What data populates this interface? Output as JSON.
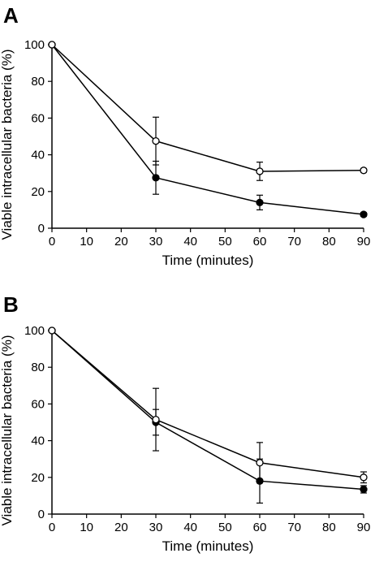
{
  "chart_data": [
    {
      "type": "line",
      "panel_label": "A",
      "xlabel": "Time (minutes)",
      "ylabel": "Viable intracellular bacteria (%)",
      "xlim": [
        0,
        90
      ],
      "ylim": [
        0,
        100
      ],
      "xticks": [
        0,
        10,
        20,
        30,
        40,
        50,
        60,
        70,
        80,
        90
      ],
      "yticks": [
        0,
        20,
        40,
        60,
        80,
        100
      ],
      "grid": false,
      "x": [
        0,
        30,
        60,
        90
      ],
      "series": [
        {
          "marker": "open-circle",
          "color": "#000000",
          "values": [
            100,
            47.5,
            31,
            31.5
          ],
          "errors": [
            0,
            13,
            5,
            1
          ]
        },
        {
          "marker": "filled-circle",
          "color": "#000000",
          "values": [
            100,
            27.5,
            14,
            7.5
          ],
          "errors": [
            0,
            9,
            4,
            1
          ]
        }
      ]
    },
    {
      "type": "line",
      "panel_label": "B",
      "xlabel": "Time (minutes)",
      "ylabel": "Viable intracellular bacteria (%)",
      "xlim": [
        0,
        90
      ],
      "ylim": [
        0,
        100
      ],
      "xticks": [
        0,
        10,
        20,
        30,
        40,
        50,
        60,
        70,
        80,
        90
      ],
      "yticks": [
        0,
        20,
        40,
        60,
        80,
        100
      ],
      "grid": false,
      "x": [
        0,
        30,
        60,
        90
      ],
      "series": [
        {
          "marker": "open-circle",
          "color": "#000000",
          "values": [
            100,
            51.5,
            28,
            20
          ],
          "errors": [
            0,
            17,
            11,
            3
          ]
        },
        {
          "marker": "filled-circle",
          "color": "#000000",
          "values": [
            100,
            50,
            18,
            13.5
          ],
          "errors": [
            0,
            7,
            12,
            2
          ]
        }
      ]
    }
  ]
}
